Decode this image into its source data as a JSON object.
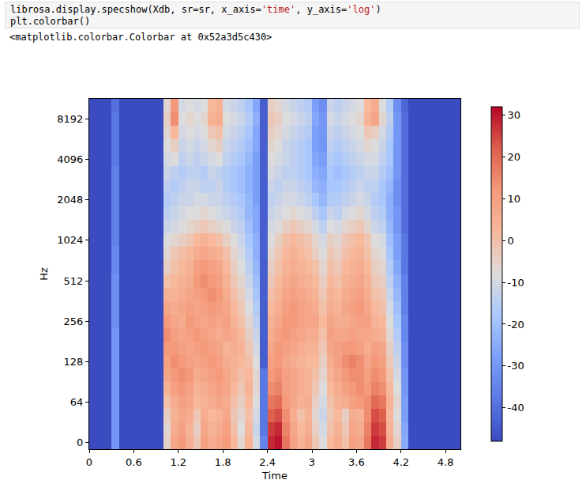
{
  "code": [
    "librosa.display.specshow(Xdb, sr=sr, x_axis='time', y_axis='log')",
    "plt.colorbar()"
  ],
  "output": "<matplotlib.colorbar.Colorbar at 0x52a3d5c430>",
  "chart_data": {
    "type": "heatmap",
    "x_label": "Time",
    "y_label": "Hz",
    "xlim": [
      0,
      5.0
    ],
    "xticks": [
      0,
      0.6,
      1.2,
      1.8,
      2.4,
      3,
      3.6,
      4.2,
      4.8
    ],
    "x": [
      0.05,
      0.15,
      0.25,
      0.35,
      0.45,
      0.55,
      0.65,
      0.75,
      0.85,
      0.95,
      1.05,
      1.15,
      1.25,
      1.35,
      1.45,
      1.55,
      1.65,
      1.75,
      1.85,
      1.95,
      2.05,
      2.15,
      2.25,
      2.35,
      2.45,
      2.55,
      2.65,
      2.75,
      2.85,
      2.95,
      3.05,
      3.15,
      3.25,
      3.35,
      3.45,
      3.55,
      3.65,
      3.75,
      3.85,
      3.95,
      4.05,
      4.15,
      4.25,
      4.35,
      4.45,
      4.55,
      4.65,
      4.75,
      4.85,
      4.95
    ],
    "y_categories": [
      "0",
      null,
      null,
      "64",
      null,
      null,
      "128",
      null,
      null,
      "256",
      null,
      null,
      "512",
      null,
      null,
      "1024",
      null,
      null,
      "2048",
      null,
      null,
      "4096",
      null,
      null,
      "8192",
      null
    ],
    "zlim": [
      -48,
      32
    ],
    "zticks": [
      -40,
      -30,
      -20,
      -10,
      0,
      10,
      20,
      30
    ],
    "cells": [
      [
        -48,
        -48,
        -48,
        -30,
        -48,
        -48,
        -48,
        -48,
        -48,
        -48,
        -5,
        8,
        12,
        5,
        -2,
        10,
        6,
        8,
        12,
        2,
        -6,
        4,
        -10,
        -35,
        28,
        30,
        18,
        10,
        4,
        8,
        -2,
        -8,
        2,
        6,
        0,
        10,
        8,
        18,
        28,
        26,
        6,
        -4,
        -25,
        -48,
        -48,
        -48,
        -48,
        -48,
        -48,
        -48
      ],
      [
        -48,
        -48,
        -48,
        -30,
        -48,
        -48,
        -48,
        -48,
        -48,
        -48,
        -6,
        6,
        10,
        4,
        -4,
        8,
        4,
        6,
        10,
        0,
        -8,
        2,
        -12,
        -38,
        26,
        28,
        16,
        8,
        2,
        6,
        -4,
        -10,
        0,
        4,
        -2,
        8,
        6,
        16,
        26,
        24,
        4,
        -6,
        -26,
        -48,
        -48,
        -48,
        -48,
        -48,
        -48,
        -48
      ],
      [
        -48,
        -48,
        -48,
        -30,
        -48,
        -48,
        -48,
        -48,
        -48,
        -48,
        -4,
        4,
        8,
        6,
        -2,
        6,
        2,
        4,
        8,
        -2,
        -6,
        0,
        -10,
        -38,
        22,
        24,
        14,
        6,
        0,
        4,
        -6,
        -12,
        -2,
        2,
        -4,
        6,
        4,
        14,
        24,
        22,
        2,
        -8,
        -28,
        -48,
        -48,
        -48,
        -48,
        -48,
        -48,
        -48
      ],
      [
        -48,
        -48,
        -48,
        -30,
        -48,
        -48,
        -48,
        -48,
        -48,
        -48,
        0,
        6,
        10,
        8,
        2,
        4,
        6,
        8,
        6,
        0,
        -4,
        2,
        -8,
        -38,
        18,
        20,
        12,
        8,
        4,
        6,
        -4,
        -10,
        0,
        4,
        6,
        10,
        12,
        14,
        20,
        18,
        4,
        -6,
        -28,
        -48,
        -48,
        -48,
        -48,
        -48,
        -48,
        -48
      ],
      [
        -48,
        -48,
        -48,
        -30,
        -48,
        -48,
        -48,
        -48,
        -48,
        -48,
        4,
        10,
        12,
        10,
        4,
        6,
        8,
        10,
        8,
        2,
        -2,
        4,
        -6,
        -38,
        14,
        16,
        10,
        8,
        6,
        4,
        -2,
        -8,
        2,
        6,
        10,
        12,
        14,
        12,
        16,
        14,
        2,
        -8,
        -30,
        -48,
        -48,
        -48,
        -48,
        -48,
        -48,
        -48
      ],
      [
        -48,
        -48,
        -48,
        -30,
        -48,
        -48,
        -48,
        -48,
        -48,
        -48,
        8,
        12,
        14,
        12,
        6,
        8,
        10,
        12,
        8,
        4,
        0,
        2,
        -6,
        -38,
        12,
        14,
        10,
        8,
        6,
        4,
        0,
        -6,
        4,
        8,
        12,
        14,
        14,
        10,
        14,
        12,
        0,
        -10,
        -30,
        -48,
        -48,
        -48,
        -48,
        -48,
        -48,
        -48
      ],
      [
        -48,
        -48,
        -48,
        -30,
        -48,
        -48,
        -48,
        -48,
        -48,
        -48,
        10,
        14,
        12,
        10,
        8,
        10,
        12,
        10,
        6,
        4,
        2,
        0,
        -8,
        -44,
        10,
        12,
        8,
        6,
        4,
        2,
        2,
        -4,
        6,
        10,
        14,
        16,
        14,
        8,
        12,
        10,
        -2,
        -12,
        -32,
        -48,
        -48,
        -48,
        -48,
        -48,
        -48,
        -48
      ],
      [
        -48,
        -48,
        -48,
        -30,
        -48,
        -48,
        -48,
        -48,
        -48,
        -48,
        12,
        12,
        10,
        8,
        10,
        12,
        10,
        8,
        4,
        6,
        4,
        -2,
        -10,
        -44,
        8,
        12,
        10,
        8,
        6,
        4,
        4,
        -2,
        8,
        10,
        12,
        12,
        10,
        6,
        10,
        8,
        -4,
        -14,
        -32,
        -48,
        -48,
        -48,
        -48,
        -48,
        -48,
        -48
      ],
      [
        -48,
        -48,
        -48,
        -30,
        -48,
        -48,
        -48,
        -48,
        -48,
        -48,
        14,
        10,
        8,
        10,
        12,
        10,
        8,
        6,
        8,
        6,
        2,
        -4,
        -12,
        -44,
        6,
        10,
        12,
        10,
        8,
        6,
        6,
        0,
        10,
        8,
        8,
        10,
        8,
        8,
        6,
        4,
        -6,
        -16,
        -34,
        -48,
        -48,
        -48,
        -48,
        -48,
        -48,
        -48
      ],
      [
        -48,
        -48,
        -48,
        -32,
        -48,
        -48,
        -48,
        -48,
        -48,
        -48,
        12,
        8,
        6,
        12,
        10,
        8,
        10,
        8,
        10,
        4,
        0,
        -6,
        -14,
        -44,
        4,
        8,
        12,
        12,
        10,
        8,
        8,
        2,
        8,
        6,
        6,
        8,
        10,
        10,
        4,
        2,
        -8,
        -18,
        -34,
        -48,
        -48,
        -48,
        -48,
        -48,
        -48,
        -48
      ],
      [
        -48,
        -48,
        -48,
        -32,
        -48,
        -48,
        -48,
        -48,
        -48,
        -48,
        8,
        6,
        8,
        10,
        8,
        10,
        12,
        10,
        8,
        2,
        -2,
        -8,
        -16,
        -44,
        2,
        6,
        10,
        12,
        10,
        8,
        6,
        0,
        6,
        4,
        8,
        10,
        12,
        8,
        2,
        0,
        -10,
        -20,
        -36,
        -48,
        -48,
        -48,
        -48,
        -48,
        -48,
        -48
      ],
      [
        -48,
        -48,
        -48,
        -32,
        -48,
        -48,
        -48,
        -48,
        -48,
        -48,
        4,
        4,
        6,
        8,
        10,
        12,
        14,
        12,
        6,
        0,
        -4,
        -10,
        -18,
        -44,
        0,
        4,
        8,
        10,
        8,
        6,
        4,
        -2,
        4,
        2,
        6,
        8,
        10,
        6,
        0,
        -2,
        -12,
        -22,
        -36,
        -48,
        -48,
        -48,
        -48,
        -48,
        -48,
        -48
      ],
      [
        -48,
        -48,
        -48,
        -32,
        -48,
        -48,
        -48,
        -48,
        -48,
        -48,
        0,
        2,
        4,
        6,
        12,
        14,
        12,
        10,
        4,
        -2,
        -6,
        -12,
        -20,
        -44,
        -2,
        2,
        6,
        8,
        6,
        4,
        2,
        -4,
        2,
        0,
        4,
        6,
        8,
        4,
        -2,
        -4,
        -14,
        -24,
        -36,
        -48,
        -48,
        -48,
        -48,
        -48,
        -48,
        -48
      ],
      [
        -48,
        -48,
        -48,
        -34,
        -48,
        -48,
        -48,
        -48,
        -48,
        -48,
        -4,
        0,
        2,
        4,
        10,
        12,
        10,
        8,
        2,
        -4,
        -8,
        -14,
        -22,
        -44,
        -4,
        0,
        4,
        6,
        4,
        2,
        0,
        -6,
        0,
        -2,
        2,
        4,
        6,
        2,
        -4,
        -6,
        -16,
        -26,
        -38,
        -48,
        -48,
        -48,
        -48,
        -48,
        -48,
        -48
      ],
      [
        -48,
        -48,
        -48,
        -34,
        -48,
        -48,
        -48,
        -48,
        -48,
        -48,
        -6,
        -2,
        0,
        2,
        6,
        8,
        6,
        4,
        0,
        -6,
        -10,
        -16,
        -24,
        -44,
        -6,
        -2,
        2,
        4,
        2,
        0,
        -4,
        -8,
        -2,
        -4,
        0,
        2,
        4,
        0,
        -6,
        -8,
        -18,
        -28,
        -38,
        -48,
        -48,
        -48,
        -48,
        -48,
        -48,
        -48
      ],
      [
        -48,
        -48,
        -48,
        -36,
        -48,
        -48,
        -48,
        -48,
        -48,
        -48,
        -8,
        -6,
        -4,
        -2,
        2,
        4,
        2,
        0,
        -4,
        -8,
        -12,
        -18,
        -24,
        -44,
        -8,
        -4,
        0,
        2,
        0,
        -2,
        -6,
        -10,
        -4,
        -6,
        -2,
        0,
        2,
        -2,
        -8,
        -10,
        -20,
        -28,
        -38,
        -48,
        -48,
        -48,
        -48,
        -48,
        -48,
        -48
      ],
      [
        -48,
        -48,
        -48,
        -36,
        -48,
        -48,
        -48,
        -48,
        -48,
        -48,
        -12,
        -10,
        -8,
        -6,
        -4,
        -2,
        -4,
        -6,
        -8,
        -12,
        -14,
        -20,
        -26,
        -44,
        -10,
        -8,
        -4,
        -2,
        -4,
        -6,
        -10,
        -14,
        -8,
        -10,
        -6,
        -4,
        -2,
        -6,
        -12,
        -14,
        -22,
        -30,
        -40,
        -48,
        -48,
        -48,
        -48,
        -48,
        -48,
        -48
      ],
      [
        -48,
        -48,
        -48,
        -36,
        -48,
        -48,
        -48,
        -48,
        -48,
        -48,
        -14,
        -12,
        -10,
        -8,
        -8,
        -6,
        -8,
        -10,
        -12,
        -14,
        -16,
        -22,
        -26,
        -44,
        -12,
        -10,
        -8,
        -6,
        -8,
        -10,
        -14,
        -18,
        -12,
        -14,
        -10,
        -8,
        -6,
        -10,
        -14,
        -16,
        -24,
        -30,
        -40,
        -48,
        -48,
        -48,
        -48,
        -48,
        -48,
        -48
      ],
      [
        -48,
        -48,
        -48,
        -36,
        -48,
        -48,
        -48,
        -48,
        -48,
        -48,
        -16,
        -14,
        -12,
        -12,
        -10,
        -10,
        -12,
        -12,
        -14,
        -16,
        -18,
        -22,
        -28,
        -44,
        -14,
        -12,
        -10,
        -10,
        -12,
        -14,
        -18,
        -22,
        -16,
        -16,
        -14,
        -12,
        -10,
        -12,
        -16,
        -18,
        -24,
        -32,
        -40,
        -48,
        -48,
        -48,
        -48,
        -48,
        -48,
        -48
      ],
      [
        -48,
        -48,
        -48,
        -36,
        -48,
        -48,
        -48,
        -48,
        -48,
        -48,
        -14,
        -16,
        -14,
        -12,
        -12,
        -14,
        -14,
        -12,
        -16,
        -18,
        -20,
        -24,
        -28,
        -44,
        -12,
        -14,
        -12,
        -12,
        -14,
        -16,
        -22,
        -24,
        -18,
        -18,
        -16,
        -14,
        -12,
        -14,
        -14,
        -18,
        -22,
        -32,
        -40,
        -48,
        -48,
        -48,
        -48,
        -48,
        -48,
        -48
      ],
      [
        -48,
        -48,
        -48,
        -36,
        -48,
        -48,
        -48,
        -48,
        -48,
        -48,
        -12,
        -14,
        -16,
        -14,
        -14,
        -16,
        -12,
        -14,
        -16,
        -18,
        -20,
        -24,
        -28,
        -44,
        -10,
        -12,
        -14,
        -14,
        -16,
        -18,
        -24,
        -26,
        -18,
        -20,
        -18,
        -16,
        -14,
        -12,
        -12,
        -16,
        -20,
        -30,
        -40,
        -48,
        -48,
        -48,
        -48,
        -48,
        -48,
        -48
      ],
      [
        -48,
        -48,
        -48,
        -38,
        -48,
        -48,
        -48,
        -48,
        -48,
        -48,
        -10,
        -8,
        -14,
        -12,
        -14,
        -12,
        -10,
        -8,
        -14,
        -16,
        -18,
        -22,
        -28,
        -44,
        -8,
        -10,
        -12,
        -14,
        -16,
        -18,
        -26,
        -28,
        -16,
        -18,
        -16,
        -14,
        -12,
        -10,
        -10,
        -14,
        -18,
        -30,
        -40,
        -48,
        -48,
        -48,
        -48,
        -48,
        -48,
        -48
      ],
      [
        -48,
        -48,
        -48,
        -38,
        -48,
        -48,
        -48,
        -48,
        -48,
        -48,
        -8,
        -4,
        -12,
        -10,
        -12,
        -10,
        -6,
        -4,
        -12,
        -14,
        -16,
        -20,
        -26,
        -44,
        -6,
        -8,
        -12,
        -14,
        -16,
        -18,
        -28,
        -30,
        -14,
        -16,
        -14,
        -12,
        -10,
        -6,
        -8,
        -12,
        -18,
        -30,
        -40,
        -48,
        -48,
        -48,
        -48,
        -48,
        -48,
        -48
      ],
      [
        -48,
        -48,
        -48,
        -38,
        -48,
        -48,
        -48,
        -48,
        -48,
        -48,
        -6,
        2,
        -10,
        -8,
        -10,
        -8,
        -2,
        0,
        -10,
        -12,
        -14,
        -18,
        -26,
        -44,
        -4,
        -6,
        -10,
        -12,
        -14,
        -16,
        -28,
        -30,
        -12,
        -14,
        -12,
        -10,
        -8,
        -2,
        -4,
        -10,
        -16,
        -30,
        -40,
        -48,
        -48,
        -48,
        -48,
        -48,
        -48,
        -48
      ],
      [
        -48,
        -48,
        -48,
        -38,
        -48,
        -48,
        -48,
        -48,
        -48,
        -48,
        -4,
        14,
        -8,
        -6,
        -8,
        -6,
        4,
        6,
        -8,
        -10,
        -12,
        -16,
        -24,
        -44,
        -2,
        -4,
        -8,
        -10,
        -12,
        -14,
        -26,
        -30,
        -10,
        -12,
        -10,
        -8,
        -6,
        4,
        8,
        -6,
        -14,
        -30,
        -40,
        -48,
        -48,
        -48,
        -48,
        -48,
        -48,
        -48
      ],
      [
        -48,
        -48,
        -48,
        -40,
        -48,
        -48,
        -48,
        -48,
        -48,
        -48,
        -6,
        12,
        -10,
        -8,
        -10,
        -8,
        2,
        4,
        -10,
        -12,
        -14,
        -18,
        -26,
        -44,
        -4,
        -6,
        -10,
        -12,
        -14,
        -16,
        -28,
        -32,
        -12,
        -14,
        -12,
        -10,
        -8,
        2,
        6,
        -8,
        -16,
        -32,
        -42,
        -48,
        -48,
        -48,
        -48,
        -48,
        -48,
        -48
      ]
    ]
  }
}
